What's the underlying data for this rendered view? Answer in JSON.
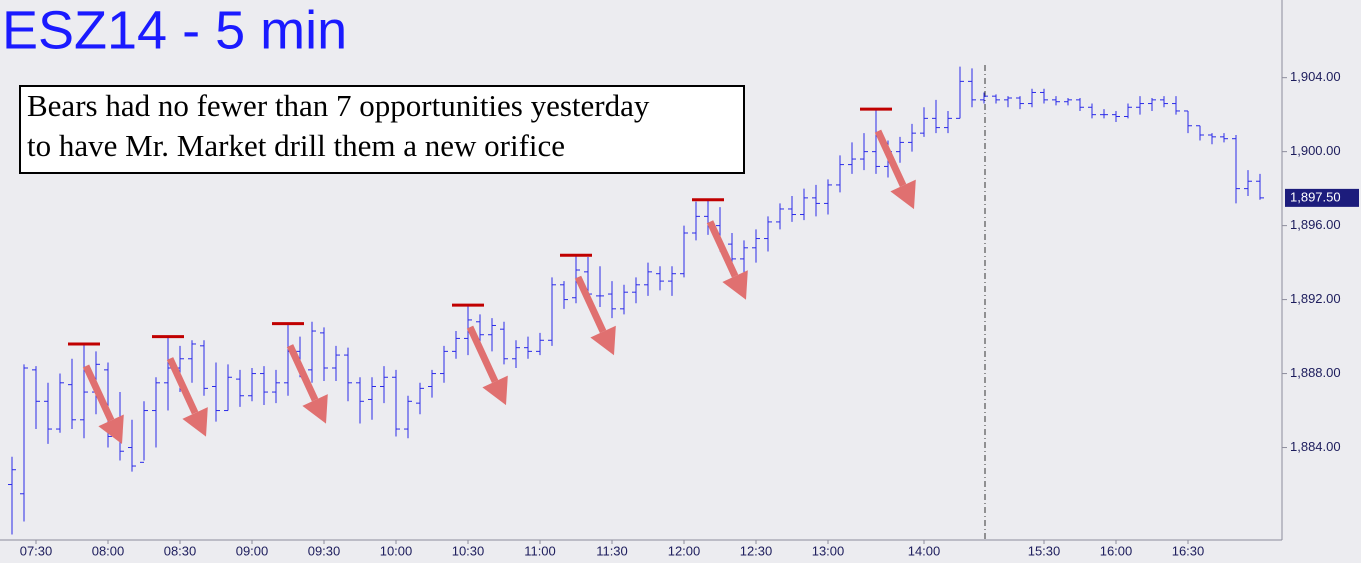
{
  "chart_data": {
    "type": "ohlc",
    "title": "ESZ14 - 5 min",
    "annotation": [
      "Bears had no fewer than 7 opportunities yesterday",
      "to have Mr. Market drill them a new orifice"
    ],
    "color": "#2a2ae8",
    "highlight_color": "#c00000",
    "arrow_color": "#e07070",
    "categories": [
      null,
      null,
      "07:30",
      null,
      null,
      null,
      null,
      null,
      "08:00",
      null,
      null,
      null,
      null,
      null,
      "08:30",
      null,
      null,
      null,
      null,
      null,
      "09:00",
      null,
      null,
      null,
      null,
      null,
      "09:30",
      null,
      null,
      null,
      null,
      null,
      "10:00",
      null,
      null,
      null,
      null,
      null,
      "10:30",
      null,
      null,
      null,
      null,
      null,
      "11:00",
      null,
      null,
      null,
      null,
      null,
      "11:30",
      null,
      null,
      null,
      null,
      null,
      "12:00",
      null,
      null,
      null,
      null,
      null,
      "12:30",
      null,
      null,
      null,
      null,
      null,
      "13:00",
      null,
      null,
      null,
      null,
      null,
      null,
      null,
      "14:00",
      null,
      null,
      null,
      null,
      null,
      null,
      null,
      null,
      null,
      "15:30",
      null,
      null,
      null,
      null,
      null,
      "16:00",
      null,
      null,
      null,
      null,
      null,
      "16:30",
      null,
      null,
      null,
      null,
      null,
      null
    ],
    "open": [
      1882.0,
      1881.5,
      1888.2,
      1886.5,
      1885.0,
      1887.4,
      1885.5,
      1887.0,
      1888.2,
      1884.5,
      1884.0,
      1883.2,
      1886.0,
      1887.5,
      1888.3,
      1888.8,
      1889.5,
      1887.3,
      1886.0,
      1887.7,
      1886.8,
      1888.0,
      1887.0,
      1887.5,
      1889.2,
      1888.2,
      1890.2,
      1888.3,
      1889.0,
      1887.5,
      1886.6,
      1887.3,
      1887.8,
      1885.0,
      1886.4,
      1887.3,
      1888.0,
      1889.2,
      1889.9,
      1890.8,
      1890.1,
      1890.4,
      1888.8,
      1889.4,
      1889.2,
      1889.8,
      1892.8,
      1892.1,
      1893.5,
      1892.2,
      1892.3,
      1891.5,
      1892.4,
      1892.8,
      1893.4,
      1893.0,
      1893.4,
      1895.6,
      1896.5,
      1896.0,
      1895.0,
      1894.2,
      1894.8,
      1895.3,
      1896.2,
      1896.9,
      1896.6,
      1897.5,
      1897.2,
      1898.2,
      1899.3,
      1899.6,
      1900.0,
      1899.2,
      1900.0,
      1900.5,
      1901.0,
      1901.8,
      1901.3,
      1901.8,
      1903.8,
      1902.8,
      1903.0,
      1902.8,
      1902.9,
      1902.6,
      1903.2,
      1902.8,
      1902.7,
      1902.8,
      1902.4,
      1902.0,
      1902.0,
      1901.9,
      1902.4,
      1902.6,
      1902.8,
      1902.6,
      1902.2,
      1901.4,
      1900.9,
      1900.8,
      1900.7,
      1898.0,
      1898.4
    ],
    "high": [
      1883.5,
      1888.5,
      1888.4,
      1887.5,
      1888.0,
      1888.8,
      1889.6,
      1889.2,
      1888.6,
      1887.0,
      1885.5,
      1886.5,
      1887.8,
      1890.0,
      1889.5,
      1889.8,
      1889.8,
      1888.6,
      1888.5,
      1888.2,
      1888.3,
      1888.4,
      1888.2,
      1890.7,
      1890.0,
      1890.8,
      1890.5,
      1889.5,
      1889.4,
      1887.8,
      1887.8,
      1888.4,
      1888.2,
      1886.8,
      1887.5,
      1888.2,
      1889.5,
      1890.3,
      1891.7,
      1891.2,
      1891.0,
      1890.8,
      1889.8,
      1890.0,
      1890.2,
      1893.2,
      1893.0,
      1894.4,
      1894.3,
      1893.8,
      1893.0,
      1892.8,
      1893.2,
      1894.0,
      1893.8,
      1893.8,
      1896.0,
      1897.3,
      1897.4,
      1897.0,
      1895.6,
      1895.2,
      1895.8,
      1896.5,
      1897.2,
      1897.6,
      1898.0,
      1898.2,
      1898.5,
      1899.8,
      1900.5,
      1901.0,
      1902.3,
      1900.6,
      1900.8,
      1901.5,
      1902.4,
      1902.8,
      1902.2,
      1904.6,
      1904.5,
      1903.2,
      1903.1,
      1903.0,
      1903.0,
      1903.4,
      1903.4,
      1903.0,
      1902.9,
      1902.9,
      1902.6,
      1902.3,
      1902.2,
      1902.6,
      1903.0,
      1902.9,
      1903.0,
      1903.0,
      1902.2,
      1901.4,
      1901.0,
      1901.0,
      1900.9,
      1899.0,
      1898.8
    ],
    "low": [
      1879.3,
      1880.0,
      1885.0,
      1884.2,
      1884.8,
      1885.0,
      1884.5,
      1885.8,
      1884.0,
      1883.3,
      1882.7,
      1883.3,
      1884.0,
      1886.0,
      1887.0,
      1887.5,
      1886.8,
      1885.4,
      1886.0,
      1886.2,
      1886.5,
      1886.3,
      1886.4,
      1886.8,
      1887.8,
      1887.5,
      1887.6,
      1887.6,
      1886.5,
      1885.3,
      1885.5,
      1886.4,
      1884.6,
      1884.5,
      1885.8,
      1886.7,
      1887.5,
      1888.8,
      1889.0,
      1889.6,
      1889.2,
      1888.5,
      1888.3,
      1888.8,
      1889.0,
      1889.5,
      1891.5,
      1891.8,
      1891.8,
      1891.6,
      1891.0,
      1891.2,
      1891.8,
      1892.2,
      1892.5,
      1892.2,
      1893.2,
      1895.2,
      1895.5,
      1894.6,
      1893.8,
      1893.4,
      1894.0,
      1894.6,
      1895.8,
      1896.2,
      1896.3,
      1896.5,
      1896.6,
      1897.8,
      1898.8,
      1899.0,
      1898.8,
      1898.6,
      1899.4,
      1900.0,
      1900.8,
      1901.0,
      1901.0,
      1901.8,
      1902.4,
      1902.6,
      1902.6,
      1902.4,
      1902.3,
      1902.4,
      1902.6,
      1902.5,
      1902.5,
      1902.2,
      1901.8,
      1901.8,
      1901.6,
      1901.8,
      1902.0,
      1902.2,
      1902.4,
      1902.0,
      1901.0,
      1900.6,
      1900.4,
      1900.5,
      1897.2,
      1897.6,
      1897.4
    ],
    "close": [
      1882.8,
      1888.3,
      1886.5,
      1885.0,
      1887.5,
      1885.5,
      1887.0,
      1888.5,
      1884.6,
      1883.8,
      1883.0,
      1886.0,
      1887.5,
      1888.3,
      1888.8,
      1889.6,
      1887.2,
      1886.0,
      1887.8,
      1886.8,
      1888.0,
      1887.0,
      1887.5,
      1889.2,
      1888.2,
      1890.3,
      1888.3,
      1889.0,
      1887.5,
      1886.5,
      1887.3,
      1887.8,
      1885.0,
      1886.5,
      1887.2,
      1888.0,
      1889.2,
      1889.9,
      1890.9,
      1890.1,
      1890.6,
      1888.8,
      1889.4,
      1889.2,
      1889.8,
      1892.8,
      1892.0,
      1893.6,
      1892.3,
      1892.2,
      1891.5,
      1892.4,
      1892.8,
      1893.5,
      1893.0,
      1893.4,
      1895.6,
      1896.5,
      1896.0,
      1895.0,
      1894.2,
      1894.8,
      1895.3,
      1896.2,
      1896.9,
      1896.6,
      1897.5,
      1897.2,
      1898.2,
      1899.3,
      1899.6,
      1900.0,
      1899.2,
      1900.0,
      1900.5,
      1901.0,
      1901.8,
      1901.3,
      1901.8,
      1903.8,
      1902.8,
      1903.0,
      1902.8,
      1902.9,
      1902.6,
      1903.2,
      1902.8,
      1902.7,
      1902.8,
      1902.4,
      1902.0,
      1902.0,
      1901.9,
      1902.4,
      1902.6,
      1902.8,
      1902.6,
      1902.2,
      1901.4,
      1900.9,
      1900.8,
      1900.7,
      1898.0,
      1898.4,
      1897.5
    ],
    "highlights": [
      null,
      null,
      null,
      null,
      null,
      null,
      1889.6,
      null,
      null,
      null,
      null,
      null,
      null,
      1890.0,
      null,
      null,
      null,
      null,
      null,
      null,
      null,
      null,
      null,
      1890.7,
      null,
      null,
      null,
      null,
      null,
      null,
      null,
      null,
      null,
      null,
      null,
      null,
      null,
      null,
      1891.7,
      null,
      null,
      null,
      null,
      null,
      null,
      null,
      null,
      1894.4,
      null,
      null,
      null,
      null,
      null,
      null,
      null,
      null,
      null,
      null,
      1897.4,
      null,
      null,
      null,
      null,
      null,
      null,
      null,
      null,
      null,
      null,
      null,
      null,
      null,
      1902.3,
      null,
      null,
      null,
      null,
      null,
      null,
      null,
      null,
      null,
      null,
      null,
      null,
      null,
      null,
      null,
      null,
      null,
      null,
      null,
      null,
      null,
      null,
      null,
      null,
      null,
      null,
      null,
      null,
      null,
      null,
      null,
      null
    ],
    "last_price": {
      "value": 1897.5,
      "label": "1,897.50"
    },
    "ylim": [
      1879.0,
      1908.2
    ],
    "yticks": [
      {
        "value": 1884,
        "label": "1,884.00"
      },
      {
        "value": 1888,
        "label": "1,888.00"
      },
      {
        "value": 1892,
        "label": "1,892.00"
      },
      {
        "value": 1896,
        "label": "1,896.00"
      },
      {
        "value": 1900,
        "label": "1,900.00"
      },
      {
        "value": 1904,
        "label": "1,904.00"
      }
    ]
  }
}
